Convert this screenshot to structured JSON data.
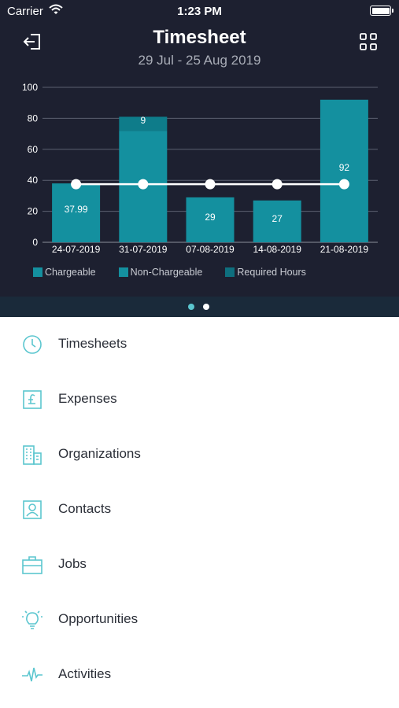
{
  "status_bar": {
    "carrier": "Carrier",
    "time": "1:23 PM"
  },
  "header": {
    "title": "Timesheet",
    "subtitle": "29 Jul - 25 Aug 2019"
  },
  "colors": {
    "background_dark": "#1d2030",
    "bar": "#14909f",
    "bar_cap": "#0e7c8a",
    "line": "#ffffff",
    "accent": "#5bc6cf",
    "dot_active": "#5bc6cf",
    "dot_inactive": "#ffffff"
  },
  "chart_data": {
    "type": "bar",
    "categories": [
      "24-07-2019",
      "31-07-2019",
      "07-08-2019",
      "14-08-2019",
      "21-08-2019"
    ],
    "series": [
      {
        "name": "Chargeable",
        "values": [
          37.99,
          72,
          29,
          27,
          92
        ]
      },
      {
        "name": "Non-Chargeable",
        "values": [
          0,
          9,
          0,
          0,
          0
        ]
      },
      {
        "name": "Required Hours",
        "values": [
          37.5,
          37.5,
          37.5,
          37.5,
          37.5
        ]
      }
    ],
    "bar_labels": [
      "37.99",
      "9",
      "29",
      "27",
      "92"
    ],
    "ylim": [
      0,
      100
    ],
    "yticks": [
      "0",
      "20",
      "40",
      "60",
      "80",
      "100"
    ],
    "grid": true,
    "legend_position": "bottom"
  },
  "legend": [
    {
      "label": "Chargeable",
      "color": "#14909f"
    },
    {
      "label": "Non-Chargeable",
      "color": "#14909f"
    },
    {
      "label": "Required Hours",
      "color": "#0e6f7e"
    }
  ],
  "pager": {
    "count": 2,
    "active": 0
  },
  "menu": [
    {
      "label": "Timesheets",
      "icon": "clock-icon"
    },
    {
      "label": "Expenses",
      "icon": "pound-receipt-icon"
    },
    {
      "label": "Organizations",
      "icon": "building-icon"
    },
    {
      "label": "Contacts",
      "icon": "contact-card-icon"
    },
    {
      "label": "Jobs",
      "icon": "briefcase-icon"
    },
    {
      "label": "Opportunities",
      "icon": "lightbulb-icon"
    },
    {
      "label": "Activities",
      "icon": "pulse-icon"
    }
  ]
}
